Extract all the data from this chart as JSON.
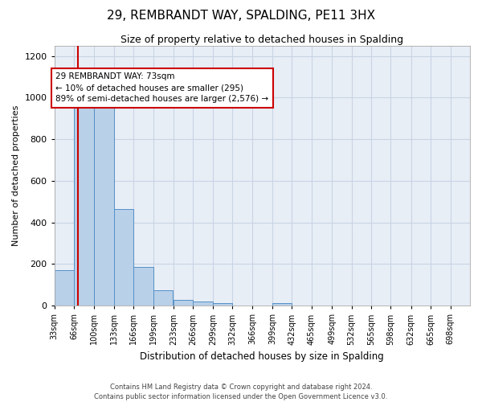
{
  "title": "29, REMBRANDT WAY, SPALDING, PE11 3HX",
  "subtitle": "Size of property relative to detached houses in Spalding",
  "xlabel": "Distribution of detached houses by size in Spalding",
  "ylabel": "Number of detached properties",
  "footer_line1": "Contains HM Land Registry data © Crown copyright and database right 2024.",
  "footer_line2": "Contains public sector information licensed under the Open Government Licence v3.0.",
  "bar_color": "#b8d0e8",
  "bar_edge_color": "#5590c8",
  "grid_color": "#c8d4e4",
  "bg_color": "#e8eef6",
  "annotation_box_color": "#cc0000",
  "property_line_color": "#cc0000",
  "property_sqm": 73,
  "annotation_text": "29 REMBRANDT WAY: 73sqm\n← 10% of detached houses are smaller (295)\n89% of semi-detached houses are larger (2,576) →",
  "categories": [
    "33sqm",
    "66sqm",
    "100sqm",
    "133sqm",
    "166sqm",
    "199sqm",
    "233sqm",
    "266sqm",
    "299sqm",
    "332sqm",
    "366sqm",
    "399sqm",
    "432sqm",
    "465sqm",
    "499sqm",
    "532sqm",
    "565sqm",
    "598sqm",
    "632sqm",
    "665sqm",
    "698sqm"
  ],
  "bin_edges": [
    33,
    66,
    100,
    133,
    166,
    199,
    233,
    266,
    299,
    332,
    366,
    399,
    432,
    465,
    499,
    532,
    565,
    598,
    632,
    665,
    698
  ],
  "bin_width": 33,
  "values": [
    170,
    970,
    990,
    465,
    185,
    75,
    28,
    20,
    12,
    0,
    0,
    12,
    0,
    0,
    0,
    0,
    0,
    0,
    0,
    0,
    0
  ],
  "ylim": [
    0,
    1250
  ],
  "yticks": [
    0,
    200,
    400,
    600,
    800,
    1000,
    1200
  ]
}
